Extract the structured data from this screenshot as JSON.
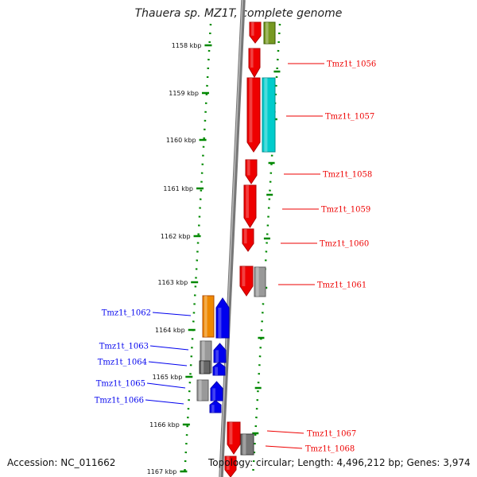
{
  "title": "Thauera sp. MZ1T, complete genome",
  "accession": "Accession: NC_011662",
  "topology": "Topology: circular; Length: 4,496,212 bp; Genes: 3,974",
  "colors": {
    "strand_plus": "#ee0000",
    "strand_minus": "#0000ee",
    "axis": "#888888",
    "ticks": "#008800",
    "orange": "#ee8800",
    "cyan": "#00cccc",
    "olive": "#779922",
    "gray": "#999999"
  },
  "scale": {
    "ticks": [
      {
        "label": "1158 kbp"
      },
      {
        "label": "1159 kbp"
      },
      {
        "label": "1160 kbp"
      },
      {
        "label": "1161 kbp"
      },
      {
        "label": "1162 kbp"
      },
      {
        "label": "1163 kbp"
      },
      {
        "label": "1164 kbp"
      },
      {
        "label": "1165 kbp"
      },
      {
        "label": "1166 kbp"
      },
      {
        "label": "1167 kbp"
      }
    ]
  },
  "gene_labels_right": [
    {
      "label": "Tmz1t_1056"
    },
    {
      "label": "Tmz1t_1057"
    },
    {
      "label": "Tmz1t_1058"
    },
    {
      "label": "Tmz1t_1059"
    },
    {
      "label": "Tmz1t_1060"
    },
    {
      "label": "Tmz1t_1061"
    },
    {
      "label": "Tmz1t_1067"
    },
    {
      "label": "Tmz1t_1068"
    }
  ],
  "gene_labels_left": [
    {
      "label": "Tmz1t_1062"
    },
    {
      "label": "Tmz1t_1063"
    },
    {
      "label": "Tmz1t_1064"
    },
    {
      "label": "Tmz1t_1065"
    },
    {
      "label": "Tmz1t_1066"
    }
  ]
}
